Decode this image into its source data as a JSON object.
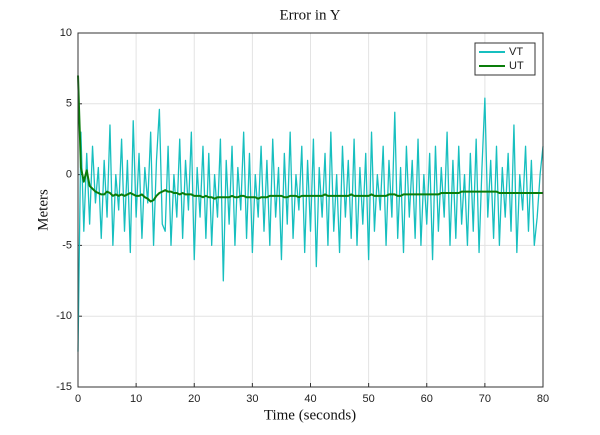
{
  "chart_data": {
    "type": "line",
    "title": "Error in Y",
    "xlabel": "Time (seconds)",
    "ylabel": "Meters",
    "x": [
      0,
      0.5,
      1,
      1.5,
      2,
      2.5,
      3,
      3.5,
      4,
      4.5,
      5,
      5.5,
      6,
      6.5,
      7,
      7.5,
      8,
      8.5,
      9,
      9.5,
      10,
      10.5,
      11,
      11.5,
      12,
      12.5,
      13,
      13.5,
      14,
      14.5,
      15,
      15.5,
      16,
      16.5,
      17,
      17.5,
      18,
      18.5,
      19,
      19.5,
      20,
      20.5,
      21,
      21.5,
      22,
      22.5,
      23,
      23.5,
      24,
      24.5,
      25,
      25.5,
      26,
      26.5,
      27,
      27.5,
      28,
      28.5,
      29,
      29.5,
      30,
      30.5,
      31,
      31.5,
      32,
      32.5,
      33,
      33.5,
      34,
      34.5,
      35,
      35.5,
      36,
      36.5,
      37,
      37.5,
      38,
      38.5,
      39,
      39.5,
      40,
      40.5,
      41,
      41.5,
      42,
      42.5,
      43,
      43.5,
      44,
      44.5,
      45,
      45.5,
      46,
      46.5,
      47,
      47.5,
      48,
      48.5,
      49,
      49.5,
      50,
      50.5,
      51,
      51.5,
      52,
      52.5,
      53,
      53.5,
      54,
      54.5,
      55,
      55.5,
      56,
      56.5,
      57,
      57.5,
      58,
      58.5,
      59,
      59.5,
      60,
      60.5,
      61,
      61.5,
      62,
      62.5,
      63,
      63.5,
      64,
      64.5,
      65,
      65.5,
      66,
      66.5,
      67,
      67.5,
      68,
      68.5,
      69,
      69.5,
      70,
      70.5,
      71,
      71.5,
      72,
      72.5,
      73,
      73.5,
      74,
      74.5,
      75,
      75.5,
      76,
      76.5,
      77,
      77.5,
      78,
      78.5,
      79,
      79.5,
      80
    ],
    "series": [
      {
        "name": "VT",
        "color": "#17bfbf",
        "values": [
          -12.5,
          3,
          -4,
          1.5,
          -3.5,
          2,
          -2,
          0.5,
          -4.5,
          1,
          -3,
          3.5,
          -5,
          0,
          -2.5,
          2.5,
          -4,
          1,
          -5.5,
          3.8,
          -3,
          1.5,
          -4.5,
          0.5,
          -2,
          3,
          -5,
          1,
          4.6,
          -3.5,
          -4,
          2,
          -5,
          0,
          -3,
          2.5,
          -4.5,
          1,
          -2.5,
          3,
          -6,
          0.5,
          -3,
          2,
          -4.5,
          1.5,
          -5,
          0,
          -3,
          2.5,
          -7.5,
          1,
          -3.5,
          2,
          -5,
          0.5,
          -2.5,
          3,
          -4.5,
          1.5,
          -5.5,
          0,
          -3,
          2,
          -4,
          1,
          -5,
          2.5,
          -3,
          0.5,
          -6,
          1.5,
          -3.5,
          3,
          -4.5,
          0,
          -2.5,
          2,
          -5.5,
          1,
          -4,
          2.5,
          -6.5,
          0.5,
          -3,
          1.5,
          -5,
          3,
          -4,
          0,
          -5.5,
          2,
          -3,
          1,
          -4.5,
          2.5,
          -5,
          0.5,
          -3.5,
          1.5,
          -6,
          3,
          -4,
          0,
          -2.5,
          2,
          -5,
          1,
          -3,
          4.4,
          -4.5,
          0.5,
          -5.5,
          2,
          -3,
          1,
          -4.5,
          2.5,
          -5,
          0,
          -3.5,
          1.5,
          -6,
          2,
          -4,
          0.5,
          -3,
          3,
          -5,
          1,
          -4.5,
          2,
          -3.5,
          0,
          -5,
          1.5,
          -4,
          2.5,
          -5.5,
          0.5,
          5.4,
          -3,
          1,
          -4.5,
          2,
          -5,
          0.5,
          -3,
          1.5,
          -4,
          3.5,
          -5.5,
          0,
          -2.5,
          2,
          -4,
          1,
          -5,
          -3,
          0,
          2
        ]
      },
      {
        "name": "UT",
        "color": "#0a7d0a",
        "values": [
          7,
          0.5,
          -0.5,
          0.3,
          -0.8,
          -1,
          -1.2,
          -1.3,
          -1.4,
          -1.4,
          -1.2,
          -1.3,
          -1.5,
          -1.4,
          -1.5,
          -1.4,
          -1.5,
          -1.4,
          -1.3,
          -1.4,
          -1.5,
          -1.5,
          -1.4,
          -1.6,
          -1.7,
          -1.9,
          -1.8,
          -1.5,
          -1.3,
          -1.2,
          -1.1,
          -1.2,
          -1.2,
          -1.3,
          -1.3,
          -1.4,
          -1.3,
          -1.4,
          -1.4,
          -1.4,
          -1.5,
          -1.5,
          -1.5,
          -1.6,
          -1.5,
          -1.6,
          -1.6,
          -1.7,
          -1.6,
          -1.6,
          -1.6,
          -1.6,
          -1.6,
          -1.5,
          -1.6,
          -1.6,
          -1.5,
          -1.5,
          -1.6,
          -1.6,
          -1.6,
          -1.6,
          -1.7,
          -1.6,
          -1.6,
          -1.6,
          -1.5,
          -1.5,
          -1.5,
          -1.5,
          -1.5,
          -1.6,
          -1.6,
          -1.5,
          -1.5,
          -1.5,
          -1.6,
          -1.5,
          -1.5,
          -1.5,
          -1.5,
          -1.5,
          -1.5,
          -1.5,
          -1.5,
          -1.4,
          -1.5,
          -1.5,
          -1.5,
          -1.5,
          -1.5,
          -1.5,
          -1.5,
          -1.5,
          -1.4,
          -1.5,
          -1.5,
          -1.5,
          -1.5,
          -1.5,
          -1.5,
          -1.4,
          -1.5,
          -1.5,
          -1.5,
          -1.5,
          -1.5,
          -1.4,
          -1.4,
          -1.4,
          -1.5,
          -1.5,
          -1.4,
          -1.4,
          -1.4,
          -1.4,
          -1.4,
          -1.4,
          -1.4,
          -1.4,
          -1.4,
          -1.4,
          -1.4,
          -1.4,
          -1.4,
          -1.3,
          -1.3,
          -1.3,
          -1.3,
          -1.3,
          -1.3,
          -1.3,
          -1.2,
          -1.2,
          -1.2,
          -1.2,
          -1.2,
          -1.2,
          -1.2,
          -1.2,
          -1.2,
          -1.2,
          -1.2,
          -1.2,
          -1.2,
          -1.3,
          -1.3,
          -1.3,
          -1.3,
          -1.3,
          -1.3,
          -1.3,
          -1.3,
          -1.3,
          -1.3,
          -1.3,
          -1.3,
          -1.3,
          -1.3,
          -1.3,
          -1.3
        ]
      }
    ],
    "xlim": [
      0,
      80
    ],
    "xticks": [
      0,
      10,
      20,
      30,
      40,
      50,
      60,
      70,
      80
    ],
    "ylim": [
      -15,
      10
    ],
    "yticks": [
      -15,
      -10,
      -5,
      0,
      5,
      10
    ],
    "grid": true,
    "legend": "upper right"
  }
}
